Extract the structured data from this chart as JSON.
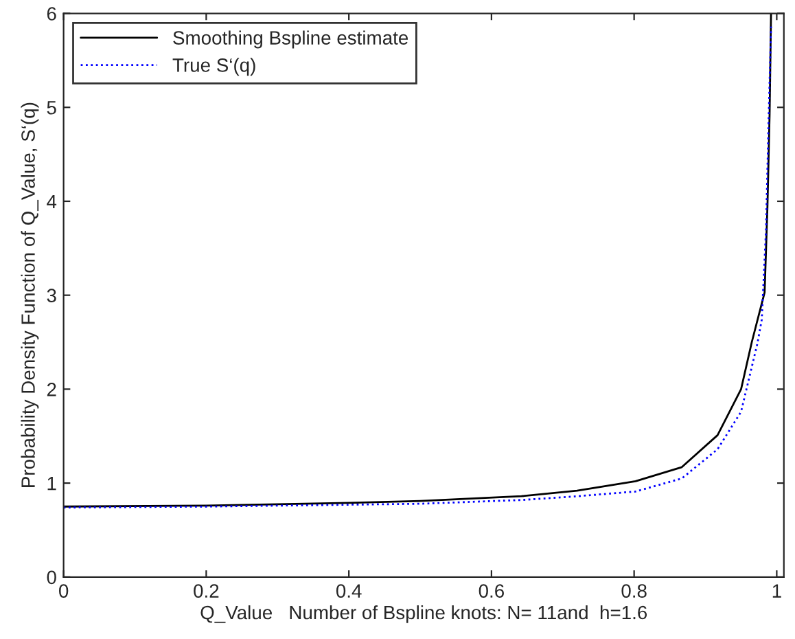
{
  "chart_data": {
    "type": "line",
    "xlabel": "Q_Value   Number of Bspline knots: N= 11and  h=1.6",
    "ylabel": "Probability Density Function of Q_Value, S‘(q)",
    "xlim": [
      0,
      1.01
    ],
    "ylim": [
      0,
      6
    ],
    "xticks": [
      0,
      0.2,
      0.4,
      0.6,
      0.8,
      1
    ],
    "yticks": [
      0,
      1,
      2,
      3,
      4,
      5,
      6
    ],
    "legend": "top left",
    "grid": false,
    "series": [
      {
        "name": "Smoothing Bspline estimate",
        "color": "#000000",
        "line_style": "solid",
        "x": [
          0,
          0.2,
          0.4,
          0.5,
          0.642,
          0.72,
          0.802,
          0.867,
          0.917,
          0.95,
          0.965,
          0.983,
          0.987,
          0.99,
          0.992
        ],
        "values": [
          0.75,
          0.76,
          0.79,
          0.81,
          0.86,
          0.92,
          1.02,
          1.17,
          1.51,
          2.0,
          2.5,
          3.03,
          3.95,
          4.93,
          6.0
        ]
      },
      {
        "name": "True S‘(q)",
        "color": "#0000ff",
        "line_style": "dotted",
        "x": [
          0,
          0.2,
          0.4,
          0.5,
          0.642,
          0.72,
          0.802,
          0.867,
          0.917,
          0.95,
          0.973,
          0.979,
          0.985,
          0.988,
          0.992
        ],
        "values": [
          0.74,
          0.75,
          0.77,
          0.78,
          0.82,
          0.86,
          0.91,
          1.05,
          1.36,
          1.76,
          2.49,
          2.74,
          3.7,
          4.68,
          5.86
        ]
      }
    ]
  }
}
